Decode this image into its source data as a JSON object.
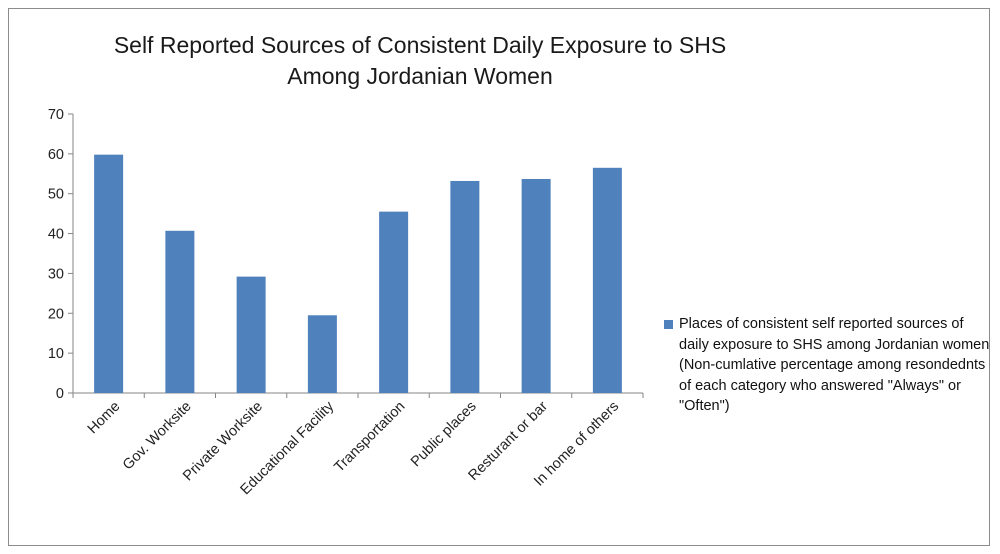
{
  "chart_data": {
    "type": "bar",
    "title": "Self Reported Sources of Consistent Daily Exposure to SHS Among Jordanian Women",
    "categories": [
      "Home",
      "Gov. Worksite",
      "Private Worksite",
      "Educational Facility",
      "Transportation",
      "Public places",
      "Resturant or bar",
      "In home of others"
    ],
    "series": [
      {
        "name": "Places of consistent self reported sources of daily exposure to SHS among Jordanian women (Non-cumlative percentage among resondednts of each category who answered \"Always\" or \"Often\")",
        "values": [
          59.8,
          40.7,
          29.2,
          19.5,
          45.5,
          53.2,
          53.7,
          56.5
        ]
      }
    ],
    "ylim": [
      0,
      70
    ],
    "yticks": [
      0,
      10,
      20,
      30,
      40,
      50,
      60,
      70
    ],
    "xlabel": "",
    "ylabel": "",
    "grid": false,
    "legend_position": "right",
    "bar_color": "#4f81bd"
  }
}
